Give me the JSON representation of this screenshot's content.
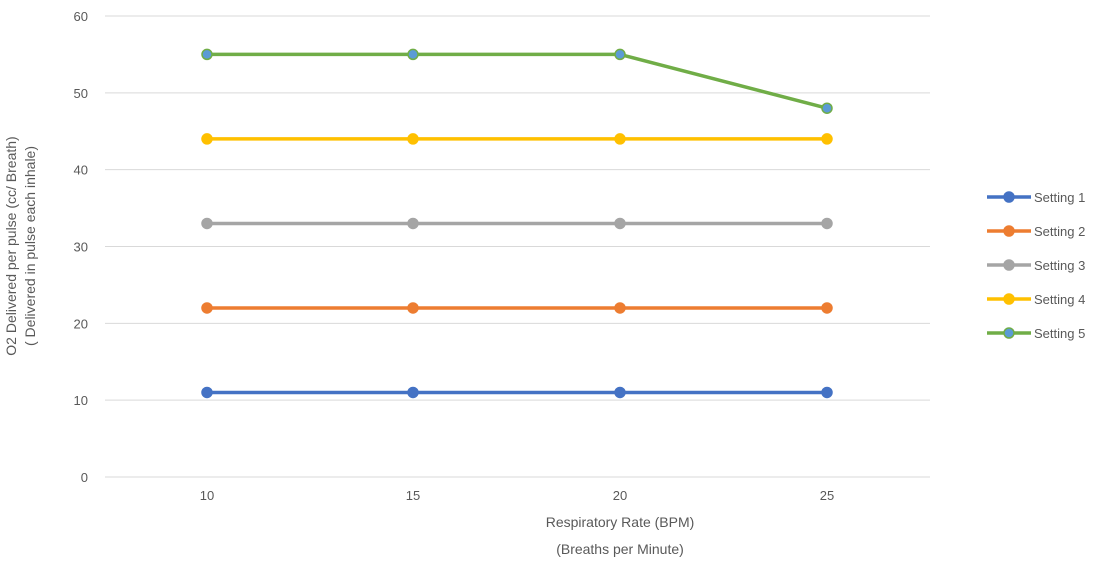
{
  "chart_data": {
    "type": "line",
    "x": [
      10,
      15,
      20,
      25
    ],
    "categories": [
      "10",
      "15",
      "20",
      "25"
    ],
    "ylim": [
      0,
      60
    ],
    "yticks": [
      0,
      10,
      20,
      30,
      40,
      50,
      60
    ],
    "ytick_labels": [
      "0",
      "10",
      "20",
      "30",
      "40",
      "50",
      "60"
    ],
    "ylabel_line1": "O2 Delivered per pulse (cc/ Breath)",
    "ylabel_line2": "( Delivered in pulse each inhale)",
    "xlabel_line1": "Respiratory Rate (BPM)",
    "xlabel_line2": "(Breaths  per Minute)",
    "grid": true,
    "legend_position": "right",
    "series": [
      {
        "name": "Setting 1",
        "color": "#4472c4",
        "values": [
          11,
          11,
          11,
          11
        ]
      },
      {
        "name": "Setting 2",
        "color": "#ed7d31",
        "values": [
          22,
          22,
          22,
          22
        ]
      },
      {
        "name": "Setting 3",
        "color": "#a5a5a5",
        "values": [
          33,
          33,
          33,
          33
        ]
      },
      {
        "name": "Setting 4",
        "color": "#ffc000",
        "values": [
          44,
          44,
          44,
          44
        ]
      },
      {
        "name": "Setting 5",
        "color": "#70ad47",
        "marker_fill": "#5b9bd5",
        "values": [
          55,
          55,
          55,
          48
        ]
      }
    ]
  }
}
